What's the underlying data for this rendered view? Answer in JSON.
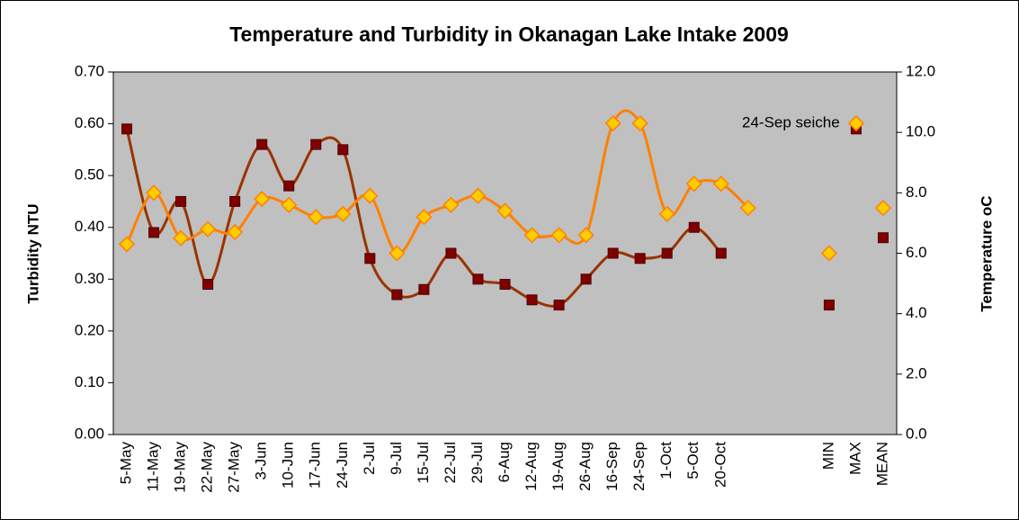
{
  "chart_data": {
    "type": "line",
    "title": "Temperature and Turbidity in Okanagan Lake Intake 2009",
    "y_label": "Turbidity NTU",
    "y_label_color": "#993300",
    "y2_label": "Temperature oC",
    "y2_label_color": "#FF6600",
    "annotation": "24-Sep seiche",
    "categories": [
      "5-May",
      "11-May",
      "19-May",
      "22-May",
      "27-May",
      "3-Jun",
      "10-Jun",
      "17-Jun",
      "24-Jun",
      "2-Jul",
      "9-Jul",
      "15-Jul",
      "22-Jul",
      "29-Jul",
      "6-Aug",
      "12-Aug",
      "19-Aug",
      "26-Aug",
      "16-Sep",
      "24-Sep",
      "1-Oct",
      "5-Oct",
      "20-Oct",
      null,
      null,
      null,
      "MIN",
      "MAX",
      "MEAN"
    ],
    "ylim": [
      0,
      0.7
    ],
    "yticks": [
      {
        "value": 0,
        "label": "0.00"
      },
      {
        "value": 0.1,
        "label": "0.10"
      },
      {
        "value": 0.2,
        "label": "0.20"
      },
      {
        "value": 0.3,
        "label": "0.30"
      },
      {
        "value": 0.4,
        "label": "0.40"
      },
      {
        "value": 0.5,
        "label": "0.50"
      },
      {
        "value": 0.6,
        "label": "0.60"
      },
      {
        "value": 0.7,
        "label": "0.70"
      }
    ],
    "y2lim": [
      0,
      12
    ],
    "y2ticks": [
      {
        "value": 0,
        "label": "0.0"
      },
      {
        "value": 2,
        "label": "2.0"
      },
      {
        "value": 4,
        "label": "4.0"
      },
      {
        "value": 6,
        "label": "6.0"
      },
      {
        "value": 8,
        "label": "8.0"
      },
      {
        "value": 10,
        "label": "10.0"
      },
      {
        "value": 12,
        "label": "12.0"
      }
    ],
    "smooth": true,
    "series": [
      {
        "color": "#993300",
        "marker": "square",
        "marker_fill": "#800000",
        "line": true,
        "values": [
          0.59,
          0.39,
          0.45,
          0.29,
          0.45,
          0.56,
          0.48,
          0.56,
          0.55,
          0.34,
          0.27,
          0.28,
          0.35,
          0.3,
          0.29,
          0.26,
          0.25,
          0.3,
          0.35,
          0.34,
          0.35,
          0.4,
          0.35,
          null,
          null,
          null,
          null,
          null,
          null
        ]
      },
      {
        "color": "#FF8000",
        "marker": "diamond",
        "marker_fill": "#FFCC00",
        "line": true,
        "axis": "y2",
        "values": [
          6.3,
          8.0,
          6.5,
          6.8,
          6.7,
          7.8,
          7.6,
          7.2,
          7.3,
          7.9,
          6.0,
          7.2,
          7.6,
          7.9,
          7.4,
          6.6,
          6.6,
          6.6,
          10.3,
          10.3,
          7.3,
          8.3,
          8.3,
          7.5,
          null,
          null,
          null,
          null,
          null
        ]
      },
      {
        "color": "#993300",
        "marker": "square",
        "marker_fill": "#800000",
        "line": false,
        "values": [
          null,
          null,
          null,
          null,
          null,
          null,
          null,
          null,
          null,
          null,
          null,
          null,
          null,
          null,
          null,
          null,
          null,
          null,
          null,
          null,
          null,
          null,
          null,
          null,
          null,
          null,
          0.25,
          0.59,
          0.38
        ]
      },
      {
        "color": "#FF8000",
        "marker": "diamond",
        "marker_fill": "#FFCC00",
        "line": false,
        "axis": "y2",
        "values": [
          null,
          null,
          null,
          null,
          null,
          null,
          null,
          null,
          null,
          null,
          null,
          null,
          null,
          null,
          null,
          null,
          null,
          null,
          null,
          null,
          null,
          null,
          null,
          null,
          null,
          null,
          6.0,
          10.3,
          7.5
        ]
      }
    ]
  }
}
